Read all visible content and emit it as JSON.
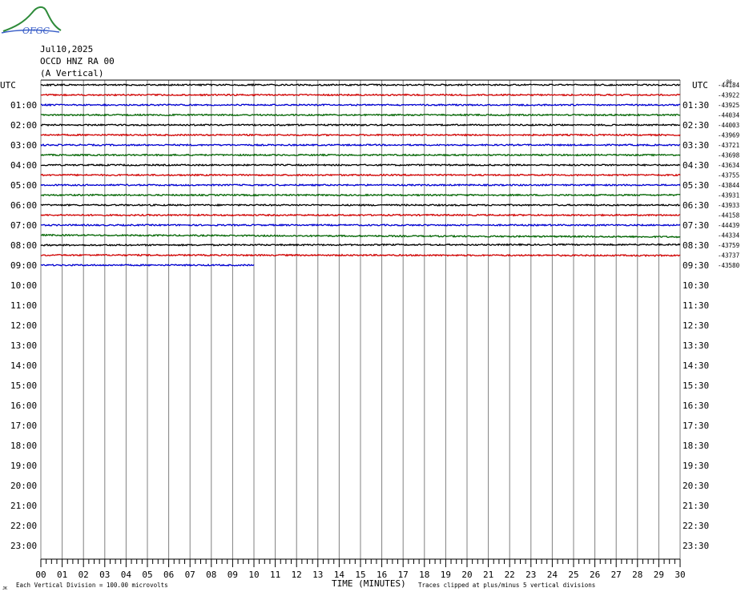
{
  "header": {
    "logo_text": "OFGC",
    "date": "Jul10,2025",
    "station": "OCCD HNZ RA 00",
    "component": "(A Vertical)"
  },
  "chart_data": {
    "type": "line",
    "title": "",
    "xlabel": "TIME (MINUTES)",
    "ylabel": "",
    "x_ticks": [
      "00",
      "01",
      "02",
      "03",
      "04",
      "05",
      "06",
      "07",
      "08",
      "09",
      "10",
      "11",
      "12",
      "13",
      "14",
      "15",
      "16",
      "17",
      "18",
      "19",
      "20",
      "21",
      "22",
      "23",
      "24",
      "25",
      "26",
      "27",
      "28",
      "29",
      "30"
    ],
    "xlim": [
      0,
      30
    ],
    "left_axis_title": "UTC",
    "right_axis_title": "UTC",
    "left_hours": [
      "01:00",
      "02:00",
      "03:00",
      "04:00",
      "05:00",
      "06:00",
      "07:00",
      "08:00",
      "09:00",
      "10:00",
      "11:00",
      "12:00",
      "13:00",
      "14:00",
      "15:00",
      "16:00",
      "17:00",
      "18:00",
      "19:00",
      "20:00",
      "21:00",
      "22:00",
      "23:00"
    ],
    "right_hours": [
      "01:30",
      "02:30",
      "03:30",
      "04:30",
      "05:30",
      "06:30",
      "07:30",
      "08:30",
      "09:30",
      "10:30",
      "11:30",
      "12:30",
      "13:30",
      "14:30",
      "15:30",
      "16:30",
      "17:30",
      "18:30",
      "19:30",
      "20:30",
      "21:30",
      "22:30",
      "23:30"
    ],
    "mean_values": [
      "-44184",
      "-43922",
      "-43925",
      "-44034",
      "-44003",
      "-43969",
      "-43721",
      "-43698",
      "-43634",
      "-43755",
      "-43844",
      "-43931",
      "-43933",
      "-44158",
      "-44439",
      "-44334",
      "-43759",
      "-43737",
      "-43580"
    ],
    "mean_label_tiny": "-86",
    "trace_colors": [
      "#000000",
      "#d00000",
      "#0000d0",
      "#006400"
    ],
    "rows_total": 48,
    "rows_with_data": 19,
    "last_row_end_minute": 10,
    "drift_rows": [
      {
        "row": 15,
        "start_minute": 0,
        "end_minute": 30,
        "offset_end_divisions": 1.8
      },
      {
        "row": 16,
        "start_minute": 0,
        "end_minute": 30,
        "offset_end_divisions": -0.6
      },
      {
        "row": 17,
        "start_minute": 12,
        "end_minute": 30,
        "offset_end_divisions": 0.4
      }
    ],
    "footer_left": "Each Vertical Division = 100.00 microvolts",
    "footer_right": "Traces clipped at plus/minus 5 vertical divisions",
    "footer_mark": "JK"
  }
}
